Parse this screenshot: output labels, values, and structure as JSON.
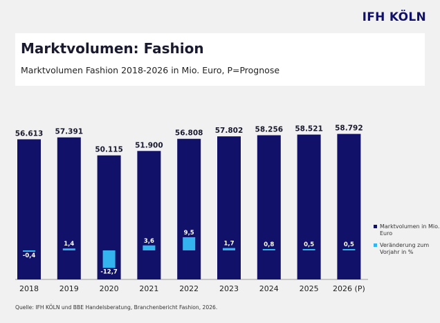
{
  "logo": "IFH KÖLN",
  "title": "Marktvolumen: Fashion",
  "subtitle": "Marktvolumen Fashion 2018-2026 in Mio. Euro, P=Prognose",
  "source": "Quelle: IFH KÖLN und BBE Handelsberatung, Branchenbericht Fashion, 2026.",
  "colors": {
    "volume": "#11116a",
    "change": "#33b4ee",
    "background": "#f1f1f1"
  },
  "chart_data": {
    "type": "bar",
    "categories": [
      "2018",
      "2019",
      "2020",
      "2021",
      "2022",
      "2023",
      "2024",
      "2025",
      "2026 (P)"
    ],
    "series": [
      {
        "name": "Marktvolumen in Mio. Euro",
        "values": [
          56613,
          57391,
          50115,
          51900,
          56808,
          57802,
          58256,
          58521,
          58792
        ],
        "labels": [
          "56.613",
          "57.391",
          "50.115",
          "51.900",
          "56.808",
          "57.802",
          "58.256",
          "58.521",
          "58.792"
        ]
      },
      {
        "name": "Veränderung zum Vorjahr in %",
        "values": [
          -0.4,
          1.4,
          -12.7,
          3.6,
          9.5,
          1.7,
          0.8,
          0.5,
          0.5
        ],
        "labels": [
          "-0,4",
          "1,4",
          "-12,7",
          "3,6",
          "9,5",
          "1,7",
          "0,8",
          "0,5",
          "0,5"
        ]
      }
    ],
    "legend": [
      "Marktvolumen in Mio. Euro",
      "Veränderung zum Vorjahr in %"
    ],
    "legend_position": "right",
    "grid": false
  }
}
